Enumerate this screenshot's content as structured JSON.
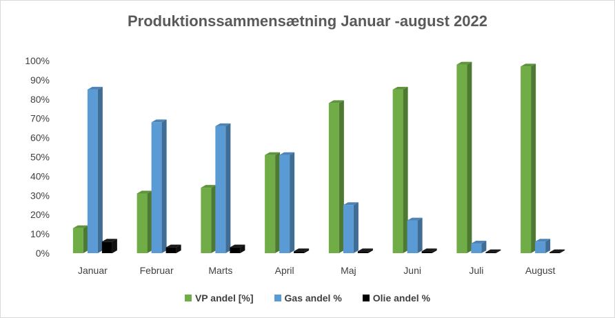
{
  "chart_data": {
    "type": "bar",
    "title": "Produktionssammensætning Januar -august 2022",
    "categories": [
      "Januar",
      "Februar",
      "Marts",
      "April",
      "Maj",
      "Juni",
      "Juli",
      "August"
    ],
    "series": [
      {
        "name": "VP andel [%]",
        "color": "#70ad47",
        "values": [
          13,
          31,
          34,
          51,
          78,
          85,
          98,
          97
        ]
      },
      {
        "name": "Gas andel %",
        "color": "#5b9bd5",
        "values": [
          85,
          68,
          66,
          51,
          25,
          17,
          5,
          6
        ]
      },
      {
        "name": "Olie andel %",
        "color": "#000000",
        "values": [
          6,
          3,
          3,
          1,
          1,
          1,
          0.5,
          0.5
        ]
      }
    ],
    "ylim": [
      0,
      100
    ],
    "yticks": [
      "0%",
      "10%",
      "20%",
      "30%",
      "40%",
      "50%",
      "60%",
      "70%",
      "80%",
      "90%",
      "100%"
    ],
    "grid": false,
    "legend_position": "bottom"
  }
}
